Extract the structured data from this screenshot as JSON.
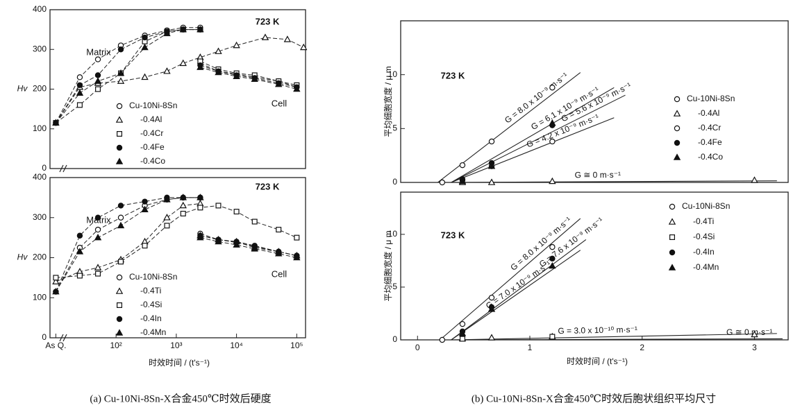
{
  "captions": [
    "(a) Cu-10Ni-8Sn-X合金450℃时效后硬度",
    "(b) Cu-10Ni-8Sn-X合金450℃时效后胞状组织平均尺寸"
  ],
  "chart_data": [
    {
      "type": "line",
      "xscale": "log",
      "xlim": [
        8,
        140000
      ],
      "ylim": [
        0,
        400
      ],
      "yticks": [
        0,
        100,
        200,
        300,
        400
      ],
      "y_label": "Hv",
      "annotations": [
        "Matrix",
        "Cell",
        "723 K"
      ],
      "series": [
        {
          "name": "Cu-10Ni-8Sn",
          "marker": "open-circle",
          "x": [
            10,
            25,
            50,
            120,
            300,
            700,
            1300,
            2500
          ],
          "values": [
            115,
            230,
            275,
            310,
            335,
            348,
            355,
            355
          ],
          "cell_x": [
            2500,
            5000,
            10000,
            20000,
            50000,
            100000
          ],
          "cell_values": [
            265,
            245,
            238,
            230,
            220,
            205
          ]
        },
        {
          "name": "-0.4Al",
          "marker": "open-triangle",
          "x": [
            10,
            25,
            50,
            120,
            300,
            700,
            1300,
            2500,
            5000,
            10000,
            30000,
            70000,
            130000
          ],
          "values": [
            115,
            205,
            215,
            220,
            230,
            245,
            265,
            280,
            295,
            310,
            330,
            325,
            305
          ]
        },
        {
          "name": "-0.4Cr",
          "marker": "open-square",
          "x": [
            10,
            25,
            50,
            120,
            300,
            700,
            1300,
            2500
          ],
          "values": [
            115,
            160,
            200,
            240,
            320,
            345,
            350,
            350
          ],
          "cell_x": [
            2500,
            5000,
            10000,
            20000,
            50000,
            100000
          ],
          "cell_values": [
            270,
            250,
            240,
            235,
            220,
            210
          ]
        },
        {
          "name": "-0.4Fe",
          "marker": "filled-circle",
          "x": [
            10,
            25,
            50,
            120,
            300,
            700,
            1300,
            2500
          ],
          "values": [
            115,
            210,
            235,
            300,
            330,
            345,
            350,
            350
          ],
          "cell_x": [
            2500,
            5000,
            10000,
            20000,
            50000,
            100000
          ],
          "cell_values": [
            260,
            245,
            235,
            228,
            215,
            205
          ]
        },
        {
          "name": "-0.4Co",
          "marker": "filled-triangle",
          "x": [
            10,
            25,
            50,
            120,
            300,
            700,
            1300,
            2500
          ],
          "values": [
            115,
            190,
            220,
            240,
            305,
            340,
            350,
            350
          ],
          "cell_x": [
            2500,
            5000,
            10000,
            20000,
            50000,
            100000
          ],
          "cell_values": [
            255,
            242,
            232,
            225,
            212,
            200
          ]
        }
      ]
    },
    {
      "type": "line",
      "xscale": "log",
      "xlim": [
        8,
        140000
      ],
      "ylim": [
        0,
        400
      ],
      "yticks": [
        0,
        100,
        200,
        300,
        400
      ],
      "xticks": [
        {
          "value": 10,
          "label": "As Q."
        },
        {
          "value": 100,
          "label": "10²"
        },
        {
          "value": 1000,
          "label": "10³"
        },
        {
          "value": 10000,
          "label": "10⁴"
        },
        {
          "value": 100000,
          "label": "10⁵"
        }
      ],
      "x_label": "时效时间 / (t's⁻¹)",
      "y_label": "Hv",
      "annotations": [
        "Matrix",
        "Cell",
        "723 K"
      ],
      "series": [
        {
          "name": "Cu-10Ni-8Sn",
          "marker": "open-circle",
          "x": [
            10,
            25,
            50,
            120,
            300,
            700,
            1300,
            2500
          ],
          "values": [
            115,
            225,
            270,
            300,
            330,
            345,
            350,
            350
          ],
          "cell_x": [
            2500,
            5000,
            10000,
            20000,
            50000,
            100000
          ],
          "cell_values": [
            260,
            245,
            240,
            230,
            215,
            205
          ]
        },
        {
          "name": "-0.4Ti",
          "marker": "open-triangle",
          "x": [
            10,
            25,
            50,
            120,
            300,
            700,
            1300,
            2500
          ],
          "values": [
            140,
            165,
            175,
            195,
            240,
            300,
            330,
            335
          ],
          "cell_x": [
            2500,
            5000,
            10000,
            20000,
            50000,
            100000
          ],
          "cell_values": [
            255,
            245,
            240,
            225,
            215,
            205
          ]
        },
        {
          "name": "-0.4Si",
          "marker": "open-square",
          "x": [
            10,
            25,
            50,
            120,
            300,
            700,
            1300,
            2500,
            5000,
            10000,
            20000,
            50000,
            100000
          ],
          "values": [
            150,
            155,
            160,
            190,
            230,
            280,
            310,
            325,
            330,
            315,
            290,
            270,
            250
          ]
        },
        {
          "name": "-0.4In",
          "marker": "filled-circle",
          "x": [
            10,
            25,
            50,
            120,
            300,
            700,
            1300,
            2500
          ],
          "values": [
            115,
            255,
            300,
            330,
            340,
            350,
            350,
            350
          ],
          "cell_x": [
            2500,
            5000,
            10000,
            20000,
            50000,
            100000
          ],
          "cell_values": [
            255,
            245,
            238,
            228,
            215,
            205
          ]
        },
        {
          "name": "-0.4Mn",
          "marker": "filled-triangle",
          "x": [
            10,
            25,
            50,
            120,
            300,
            700,
            1300,
            2500
          ],
          "values": [
            115,
            215,
            250,
            280,
            320,
            345,
            350,
            350
          ],
          "cell_x": [
            2500,
            5000,
            10000,
            20000,
            50000,
            100000
          ],
          "cell_values": [
            250,
            240,
            232,
            222,
            210,
            200
          ]
        }
      ]
    },
    {
      "type": "scatter",
      "xlim": [
        -0.15,
        3.3
      ],
      "ylim": [
        0,
        15
      ],
      "yticks": [
        0,
        5,
        10
      ],
      "y_label": "平均细胞宽度 / μ m",
      "annotations": [
        "723 K"
      ],
      "series": [
        {
          "name": "Cu-10Ni-8Sn",
          "marker": "open-circle",
          "x": [
            0.22,
            0.4,
            0.66,
            1.2
          ],
          "values": [
            0,
            1.6,
            3.8,
            8.8
          ]
        },
        {
          "name": "-0.4Al",
          "marker": "open-triangle",
          "x": [
            0.4,
            0.66,
            1.2,
            3.0
          ],
          "values": [
            0,
            0,
            0.1,
            0.2
          ]
        },
        {
          "name": "-0.4Cr",
          "marker": "open-circle",
          "x": [
            0.4,
            0.66,
            1.2
          ],
          "values": [
            0.2,
            1.5,
            3.8
          ]
        },
        {
          "name": "-0.4Fe",
          "marker": "filled-circle",
          "x": [
            0.4,
            0.66,
            1.2
          ],
          "values": [
            0.3,
            1.8,
            5.3
          ]
        },
        {
          "name": "-0.4Co",
          "marker": "filled-triangle",
          "x": [
            0.4,
            0.66,
            1.2
          ],
          "values": [
            0.1,
            1.5,
            5.5
          ]
        }
      ],
      "fit_lines": [
        {
          "label": "G = 8.0 x 10⁻⁹ m·s⁻¹",
          "x": [
            0.18,
            1.45
          ],
          "y": [
            0,
            10.2
          ]
        },
        {
          "label": "G = 6.1 x 10⁻⁹ m·s⁻¹",
          "x": [
            0.3,
            1.75
          ],
          "y": [
            0,
            8.8
          ]
        },
        {
          "label": "G = 5.6 x 10⁻⁹ m·s⁻¹",
          "x": [
            0.3,
            1.85
          ],
          "y": [
            0,
            8.1
          ]
        },
        {
          "label": "G = 4.2 x 10⁻⁹ m·s⁻¹",
          "x": [
            0.3,
            1.75
          ],
          "y": [
            0,
            6.0
          ]
        },
        {
          "label": "G ≅ 0  m·s⁻¹",
          "x": [
            0.3,
            3.2
          ],
          "y": [
            0,
            0.15
          ]
        }
      ]
    },
    {
      "type": "scatter",
      "xlim": [
        -0.15,
        3.3
      ],
      "ylim": [
        0,
        14
      ],
      "yticks": [
        0,
        5,
        10
      ],
      "xticks": [
        0,
        1,
        2,
        3
      ],
      "x_label": "时效时间 / (t's⁻¹)",
      "y_label": "平均细胞宽度 / μ m",
      "annotations": [
        "723 K"
      ],
      "series": [
        {
          "name": "Cu-10Ni-8Sn",
          "marker": "open-circle",
          "x": [
            0.22,
            0.4,
            0.66,
            1.2
          ],
          "values": [
            0,
            1.5,
            4.0,
            8.8
          ]
        },
        {
          "name": "-0.4Ti",
          "marker": "open-triangle",
          "x": [
            0.4,
            0.66,
            1.2,
            3.0
          ],
          "values": [
            0.1,
            0.2,
            0.3,
            0.5
          ]
        },
        {
          "name": "-0.4Si",
          "marker": "open-square",
          "x": [
            0.4,
            1.2
          ],
          "values": [
            0.1,
            0.3
          ]
        },
        {
          "name": "-0.4In",
          "marker": "filled-circle",
          "x": [
            0.4,
            0.66,
            1.2
          ],
          "values": [
            0.8,
            3.1,
            7.7
          ]
        },
        {
          "name": "-0.4Mn",
          "marker": "filled-triangle",
          "x": [
            0.4,
            0.66,
            1.2
          ],
          "values": [
            0.6,
            2.9,
            7.0
          ]
        }
      ],
      "fit_lines": [
        {
          "label": "G = 8.0 x 10⁻⁹ m·s⁻¹",
          "x": [
            0.2,
            1.45
          ],
          "y": [
            0,
            11.5
          ]
        },
        {
          "label": "G = 7.6 x 10⁻⁹ m·s⁻¹",
          "x": [
            0.3,
            1.5
          ],
          "y": [
            0,
            9.5
          ]
        },
        {
          "label": "G = 7.0 x 10⁻⁹ m·s⁻¹",
          "x": [
            0.3,
            1.45
          ],
          "y": [
            0,
            8.5
          ]
        },
        {
          "label": "G = 3.0 x 10⁻¹⁰ m·s⁻¹",
          "x": [
            0.3,
            3.2
          ],
          "y": [
            0,
            0.6
          ]
        },
        {
          "label": "G ≅ 0 m·s⁻¹",
          "x": [
            0.3,
            3.25
          ],
          "y": [
            0,
            0.1
          ]
        }
      ]
    }
  ]
}
